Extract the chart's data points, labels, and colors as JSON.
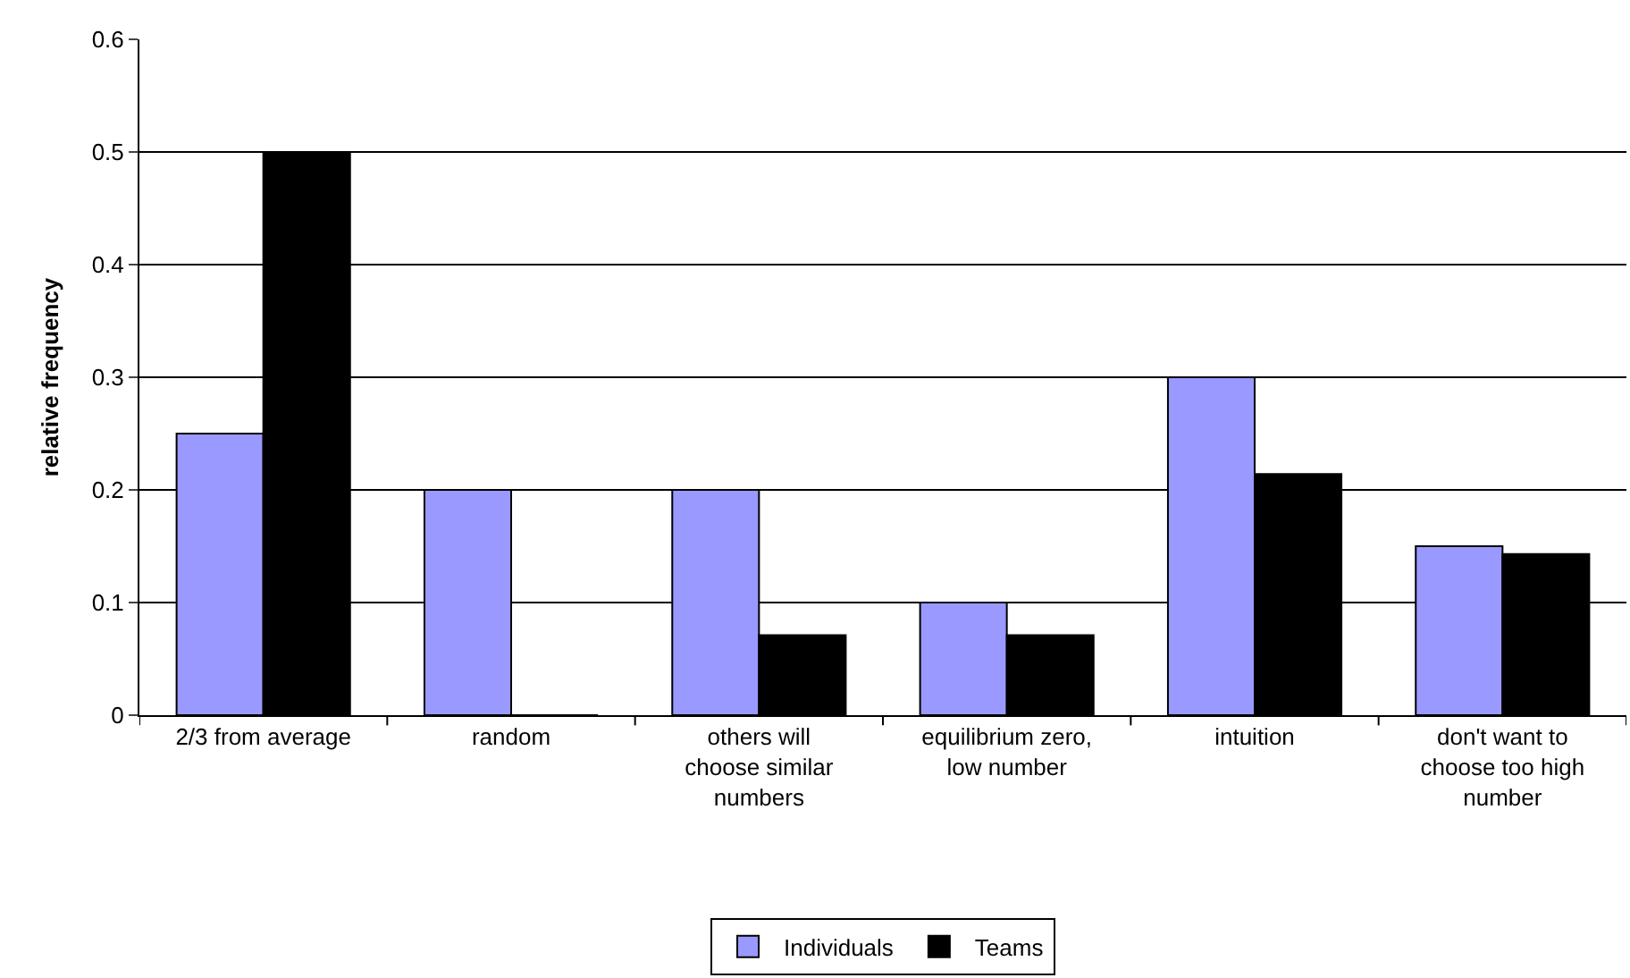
{
  "chart_data": {
    "type": "bar",
    "categories": [
      "2/3 from average",
      "random",
      "others will\nchoose similar\nnumbers",
      "equilibrium zero,\nlow number",
      "intuition",
      "don't want to\nchoose too high\nnumber"
    ],
    "series": [
      {
        "name": "Individuals",
        "color": "#9999ff",
        "values": [
          0.25,
          0.2,
          0.2,
          0.1,
          0.3,
          0.15
        ]
      },
      {
        "name": "Teams",
        "color": "#000000",
        "values": [
          0.5,
          0,
          0.071,
          0.071,
          0.214,
          0.143
        ]
      }
    ],
    "ylabel": "relative frequency",
    "ylim": [
      0,
      0.6
    ],
    "yticks": [
      0,
      0.1,
      0.2,
      0.3,
      0.4,
      0.5,
      0.6
    ],
    "grid": "y",
    "legend": "bottom"
  }
}
